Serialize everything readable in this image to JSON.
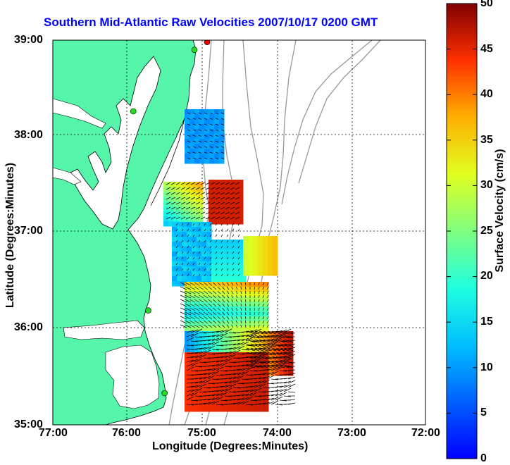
{
  "title": "Southern Mid-Atlantic Raw Velocities 2007/10/17 0200 GMT",
  "x_axis": {
    "label": "Longitude (Degrees:Minutes)",
    "ticks": [
      "77:00",
      "76:00",
      "75:00",
      "74:00",
      "73:00",
      "72:00"
    ]
  },
  "y_axis": {
    "label": "Latitude (Degrees:Minutes)",
    "ticks": [
      "39:00",
      "38:00",
      "37:00",
      "36:00",
      "35:00"
    ]
  },
  "colorbar": {
    "label": "Surface Velocity (cm/s)",
    "ticks": [
      "50",
      "45",
      "40",
      "35",
      "30",
      "25",
      "20",
      "15",
      "10",
      "5",
      "0"
    ],
    "min": 0,
    "max": 50,
    "colormap": "jet"
  },
  "colors": {
    "land": "#55f5aa",
    "title": "#0000ff",
    "station_green": "#22dd22",
    "station_red": "#ee0000",
    "bathymetry": "#999999"
  },
  "stations": [
    {
      "lon": -74.93,
      "lat": 38.98,
      "color": "red"
    },
    {
      "lon": -75.1,
      "lat": 38.9,
      "color": "green"
    },
    {
      "lon": -75.92,
      "lat": 38.26,
      "color": "green"
    },
    {
      "lon": -75.72,
      "lat": 36.19,
      "color": "green"
    },
    {
      "lon": -75.5,
      "lat": 35.33,
      "color": "green"
    }
  ]
}
